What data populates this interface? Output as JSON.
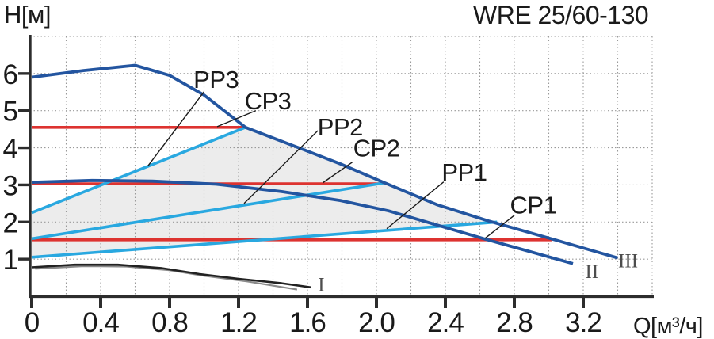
{
  "title": "WRE 25/60-130",
  "y_axis_label": "H[м]",
  "x_axis_label": "Q[м³/ч]",
  "chart_data": {
    "type": "line",
    "title": "WRE 25/60-130",
    "xlabel": "Q[м³/ч]",
    "ylabel": "H[м]",
    "xlim": [
      0,
      3.6
    ],
    "ylim": [
      0,
      7
    ],
    "grid": {
      "x_step": 0.2,
      "x_max": 3.6,
      "y_step": 1,
      "y_max": 7,
      "style": "dotted"
    },
    "x_tick_values": [
      0,
      0.4,
      0.8,
      1.2,
      1.6,
      2.0,
      2.4,
      2.8,
      3.2
    ],
    "x_tick_labels": [
      "0",
      "0.4",
      "0.8",
      "1.2",
      "1.6",
      "2.0",
      "2.4",
      "2.8",
      "3.2"
    ],
    "y_tick_values": [
      1,
      2,
      3,
      4,
      5,
      6
    ],
    "y_tick_labels": [
      "1",
      "2",
      "3",
      "4",
      "5",
      "6"
    ],
    "colors": {
      "navy": "#2355a0",
      "cyan": "#29a8e0",
      "red": "#dd3330",
      "region": "#ececec",
      "grid": "#9a9a9a",
      "axis": "#2d2d2d",
      "curve_I_dark": "#222222",
      "curve_I_light": "#8a8a8a"
    },
    "shaded_region": [
      [
        0,
        1.05
      ],
      [
        0,
        2.25
      ],
      [
        1.24,
        4.55
      ],
      [
        1.55,
        4.0
      ],
      [
        1.8,
        3.55
      ],
      [
        2.04,
        3.05
      ],
      [
        2.35,
        2.47
      ],
      [
        2.7,
        2.0
      ],
      [
        0,
        1.05
      ]
    ],
    "series": [
      {
        "name": "CP3-constant-pressure",
        "color": "#dd3330",
        "width": 3.6,
        "points": [
          [
            0,
            4.55
          ],
          [
            1.24,
            4.55
          ]
        ]
      },
      {
        "name": "CP2-constant-pressure",
        "color": "#dd3330",
        "width": 3.6,
        "points": [
          [
            0,
            3.03
          ],
          [
            2.04,
            3.03
          ]
        ]
      },
      {
        "name": "CP1-constant-pressure",
        "color": "#dd3330",
        "width": 3.6,
        "points": [
          [
            0,
            1.52
          ],
          [
            3.02,
            1.52
          ]
        ]
      },
      {
        "name": "PP3-proportional-pressure",
        "color": "#29a8e0",
        "width": 3.6,
        "points": [
          [
            0,
            2.25
          ],
          [
            1.24,
            4.55
          ]
        ]
      },
      {
        "name": "PP2-proportional-pressure",
        "color": "#29a8e0",
        "width": 3.6,
        "points": [
          [
            0,
            1.55
          ],
          [
            2.04,
            3.05
          ]
        ]
      },
      {
        "name": "PP1-proportional-pressure",
        "color": "#29a8e0",
        "width": 3.6,
        "points": [
          [
            0,
            1.05
          ],
          [
            2.7,
            2.0
          ]
        ]
      },
      {
        "name": "speed-III-max-curve",
        "color": "#2355a0",
        "width": 3.8,
        "points": [
          [
            0,
            5.9
          ],
          [
            0.3,
            6.08
          ],
          [
            0.6,
            6.22
          ],
          [
            0.8,
            5.95
          ],
          [
            1.0,
            5.42
          ],
          [
            1.24,
            4.55
          ],
          [
            1.55,
            4.0
          ],
          [
            1.8,
            3.55
          ],
          [
            2.04,
            3.07
          ],
          [
            2.35,
            2.47
          ],
          [
            2.65,
            2.03
          ],
          [
            3.05,
            1.5
          ],
          [
            3.4,
            1.03
          ]
        ]
      },
      {
        "name": "speed-II-curve",
        "color": "#2355a0",
        "width": 3.8,
        "points": [
          [
            0,
            3.07
          ],
          [
            0.35,
            3.12
          ],
          [
            0.7,
            3.1
          ],
          [
            1.07,
            3.02
          ],
          [
            1.45,
            2.82
          ],
          [
            1.79,
            2.58
          ],
          [
            2.07,
            2.3
          ],
          [
            2.63,
            1.54
          ],
          [
            3.14,
            0.88
          ]
        ]
      },
      {
        "name": "speed-I-curve-light",
        "color": "#8a8a8a",
        "width": 2.2,
        "points": [
          [
            0.02,
            0.74
          ],
          [
            0.3,
            0.81
          ],
          [
            0.55,
            0.8
          ],
          [
            0.8,
            0.7
          ],
          [
            1.0,
            0.55
          ],
          [
            1.25,
            0.4
          ],
          [
            1.54,
            0.18
          ]
        ]
      },
      {
        "name": "speed-I-curve-dark",
        "color": "#222222",
        "width": 2.6,
        "points": [
          [
            0,
            0.78
          ],
          [
            0.25,
            0.85
          ],
          [
            0.5,
            0.85
          ],
          [
            0.75,
            0.76
          ],
          [
            0.97,
            0.6
          ],
          [
            1.2,
            0.47
          ],
          [
            1.45,
            0.35
          ],
          [
            1.62,
            0.24
          ]
        ]
      }
    ],
    "annotations": [
      {
        "label": "PP3",
        "x": 1.07,
        "y": 5.85,
        "font": "sans",
        "leader": [
          [
            1.0,
            5.51
          ],
          [
            0.676,
            3.52
          ]
        ]
      },
      {
        "label": "CP3",
        "x": 1.37,
        "y": 5.27,
        "font": "sans",
        "leader": [
          [
            1.3,
            5.0
          ],
          [
            1.076,
            4.57
          ]
        ]
      },
      {
        "label": "PP2",
        "x": 1.79,
        "y": 4.57,
        "font": "sans",
        "leader": [
          [
            1.66,
            4.46
          ],
          [
            1.232,
            2.5
          ]
        ]
      },
      {
        "label": "CP2",
        "x": 2.0,
        "y": 4.0,
        "font": "sans",
        "leader": [
          [
            1.86,
            3.61
          ],
          [
            1.69,
            3.06
          ]
        ]
      },
      {
        "label": "PP1",
        "x": 2.51,
        "y": 3.35,
        "font": "sans",
        "leader": [
          [
            2.39,
            3.08
          ],
          [
            2.06,
            1.82
          ]
        ]
      },
      {
        "label": "CP1",
        "x": 2.91,
        "y": 2.46,
        "font": "sans",
        "leader": [
          [
            2.8,
            2.18
          ],
          [
            2.63,
            1.56
          ]
        ]
      },
      {
        "label": "I",
        "x": 1.68,
        "y": 0.33,
        "font": "serif"
      },
      {
        "label": "II",
        "x": 3.25,
        "y": 0.68,
        "font": "serif"
      },
      {
        "label": "III",
        "x": 3.46,
        "y": 0.97,
        "font": "serif"
      }
    ],
    "legend": "none"
  }
}
